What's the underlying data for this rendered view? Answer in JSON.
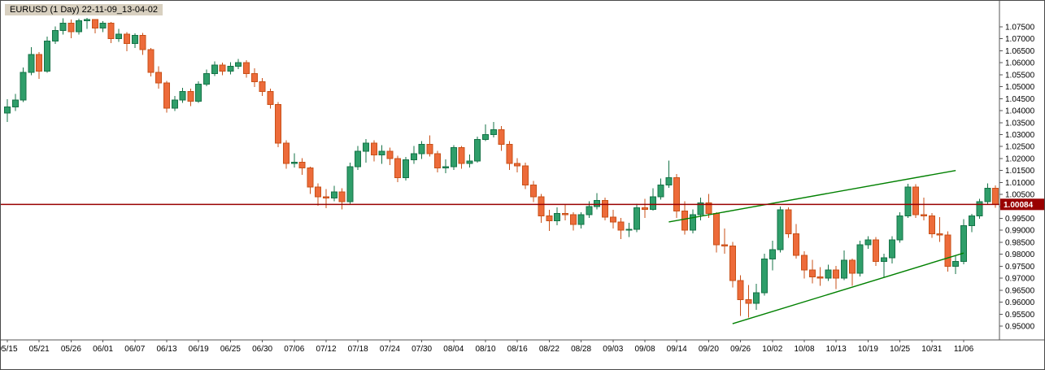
{
  "header": {
    "title": "EURUSD (1 Day) 22-11-09_13-04-02"
  },
  "chart_data": {
    "type": "candlestick",
    "symbol": "EURUSD",
    "timeframe": "1 Day",
    "title": "EURUSD (1 Day) 22-11-09_13-04-02",
    "grid": false,
    "legend_position": "none",
    "y_range": [
      0.946,
      1.0815
    ],
    "y_tick_labels": [
      "1.07500",
      "1.07000",
      "1.06500",
      "1.06000",
      "1.05500",
      "1.05000",
      "1.04500",
      "1.04000",
      "1.03500",
      "1.03000",
      "1.02500",
      "1.02000",
      "1.01500",
      "1.01000",
      "1.00500",
      "1.00000",
      "0.99500",
      "0.99000",
      "0.98500",
      "0.98000",
      "0.97500",
      "0.97000",
      "0.96500",
      "0.96000",
      "0.95500",
      "0.95000"
    ],
    "x_tick_labels": [
      "05/15",
      "05/21",
      "05/26",
      "06/01",
      "06/07",
      "06/13",
      "06/19",
      "06/25",
      "06/30",
      "07/06",
      "07/12",
      "07/18",
      "07/24",
      "07/30",
      "08/04",
      "08/10",
      "08/16",
      "08/22",
      "08/28",
      "09/03",
      "09/08",
      "09/14",
      "09/20",
      "09/26",
      "10/02",
      "10/08",
      "10/13",
      "10/19",
      "10/25",
      "10/31",
      "11/06"
    ],
    "x_tick_step": 4,
    "current_price": 1.00084,
    "current_price_label": "1.00084",
    "colors": {
      "up": "#2f9e6a",
      "up_border": "#157347",
      "down": "#ed6b3a",
      "down_border": "#c85018",
      "price_line": "#990000",
      "trend": "#008000",
      "axis": "#555555",
      "text": "#000000"
    },
    "trendlines": [
      {
        "name": "upper-channel-line",
        "from": {
          "index": 83,
          "price": 0.9935
        },
        "to": {
          "index": 119,
          "price": 1.015
        }
      },
      {
        "name": "lower-channel-line",
        "from": {
          "index": 91,
          "price": 0.951
        },
        "to": {
          "index": 120,
          "price": 0.9805
        }
      }
    ],
    "candles_ohlc": [
      [
        1.039,
        1.0448,
        1.0352,
        1.0415
      ],
      [
        1.0415,
        1.047,
        1.0398,
        1.0445
      ],
      [
        1.0445,
        1.058,
        1.0435,
        1.056
      ],
      [
        1.056,
        1.0665,
        1.0548,
        1.0635
      ],
      [
        1.0635,
        1.0645,
        1.0532,
        1.0565
      ],
      [
        1.0565,
        1.071,
        1.0558,
        1.069
      ],
      [
        1.069,
        1.0752,
        1.0678,
        1.0735
      ],
      [
        1.0735,
        1.0786,
        1.0718,
        1.0765
      ],
      [
        1.0765,
        1.078,
        1.0702,
        1.073
      ],
      [
        1.073,
        1.0784,
        1.0718,
        1.0775
      ],
      [
        1.0775,
        1.0787,
        1.0742,
        1.078
      ],
      [
        1.078,
        1.0783,
        1.0722,
        1.0745
      ],
      [
        1.0745,
        1.0774,
        1.0728,
        1.0765
      ],
      [
        1.0765,
        1.077,
        1.0682,
        1.07
      ],
      [
        1.07,
        1.0742,
        1.0688,
        1.072
      ],
      [
        1.072,
        1.0728,
        1.0648,
        1.068
      ],
      [
        1.068,
        1.0722,
        1.0662,
        1.0715
      ],
      [
        1.0715,
        1.0724,
        1.0632,
        1.0655
      ],
      [
        1.0655,
        1.0662,
        1.0542,
        1.056
      ],
      [
        1.056,
        1.0586,
        1.0492,
        1.0515
      ],
      [
        1.0515,
        1.0524,
        1.0392,
        1.041
      ],
      [
        1.041,
        1.0462,
        1.0398,
        1.0445
      ],
      [
        1.0445,
        1.0496,
        1.0432,
        1.048
      ],
      [
        1.048,
        1.0492,
        1.0418,
        1.044
      ],
      [
        1.044,
        1.0522,
        1.0432,
        1.051
      ],
      [
        1.051,
        1.0572,
        1.0502,
        1.0555
      ],
      [
        1.0555,
        1.0606,
        1.0544,
        1.059
      ],
      [
        1.059,
        1.0601,
        1.0548,
        1.0565
      ],
      [
        1.0565,
        1.0602,
        1.0552,
        1.0585
      ],
      [
        1.0585,
        1.0616,
        1.0574,
        1.06
      ],
      [
        1.06,
        1.0611,
        1.0538,
        1.0555
      ],
      [
        1.0555,
        1.0576,
        1.0498,
        1.052
      ],
      [
        1.052,
        1.0536,
        1.0462,
        1.048
      ],
      [
        1.048,
        1.0491,
        1.0408,
        1.0425
      ],
      [
        1.0425,
        1.0436,
        1.0248,
        1.0265
      ],
      [
        1.0265,
        1.0276,
        1.0158,
        1.018
      ],
      [
        1.018,
        1.0222,
        1.0162,
        1.0185
      ],
      [
        1.0185,
        1.0202,
        1.0132,
        1.016
      ],
      [
        1.016,
        1.0166,
        1.0052,
        1.008
      ],
      [
        1.008,
        1.0096,
        1.0002,
        1.004
      ],
      [
        1.004,
        1.0072,
        0.9992,
        1.0035
      ],
      [
        1.0035,
        1.0086,
        1.0022,
        1.006
      ],
      [
        1.006,
        1.0076,
        0.9988,
        1.002
      ],
      [
        1.002,
        1.0182,
        1.0012,
        1.0165
      ],
      [
        1.0165,
        1.0252,
        1.0152,
        1.023
      ],
      [
        1.023,
        1.0282,
        1.0182,
        1.0265
      ],
      [
        1.0265,
        1.0276,
        1.0188,
        1.0215
      ],
      [
        1.0215,
        1.0256,
        1.0178,
        1.023
      ],
      [
        1.023,
        1.0246,
        1.0172,
        1.02
      ],
      [
        1.02,
        1.0212,
        1.0102,
        1.012
      ],
      [
        1.012,
        1.0206,
        1.0108,
        1.0195
      ],
      [
        1.0195,
        1.0252,
        1.0178,
        1.022
      ],
      [
        1.022,
        1.0272,
        1.0198,
        1.026
      ],
      [
        1.026,
        1.0296,
        1.0208,
        1.022
      ],
      [
        1.022,
        1.0232,
        1.0142,
        1.016
      ],
      [
        1.016,
        1.0196,
        1.0138,
        1.0165
      ],
      [
        1.0165,
        1.0256,
        1.0152,
        1.0245
      ],
      [
        1.0245,
        1.0252,
        1.0158,
        1.018
      ],
      [
        1.018,
        1.0216,
        1.0162,
        1.019
      ],
      [
        1.019,
        1.0292,
        1.0182,
        1.028
      ],
      [
        1.028,
        1.0342,
        1.0272,
        1.03
      ],
      [
        1.03,
        1.0352,
        1.0288,
        1.032
      ],
      [
        1.032,
        1.0336,
        1.0232,
        1.026
      ],
      [
        1.026,
        1.0272,
        1.0152,
        1.018
      ],
      [
        1.018,
        1.0202,
        1.0142,
        1.017
      ],
      [
        1.017,
        1.0182,
        1.0072,
        1.009
      ],
      [
        1.009,
        1.0106,
        1.0018,
        1.004
      ],
      [
        1.004,
        1.0052,
        0.9932,
        0.996
      ],
      [
        0.996,
        0.9986,
        0.9898,
        0.994
      ],
      [
        0.994,
        0.9996,
        0.9922,
        0.997
      ],
      [
        0.997,
        1.0006,
        0.9942,
        0.9965
      ],
      [
        0.9965,
        0.9976,
        0.9899,
        0.9925
      ],
      [
        0.9925,
        0.9976,
        0.9908,
        0.9965
      ],
      [
        0.9965,
        1.0022,
        0.9952,
        1.0
      ],
      [
        1.0,
        1.0056,
        0.9988,
        1.0025
      ],
      [
        1.0025,
        1.0036,
        0.9942,
        0.9955
      ],
      [
        0.9955,
        0.9986,
        0.9908,
        0.9935
      ],
      [
        0.9935,
        0.9952,
        0.9864,
        0.99
      ],
      [
        0.99,
        0.9932,
        0.9872,
        0.9905
      ],
      [
        0.9905,
        1.0012,
        0.9892,
        0.9995
      ],
      [
        0.9995,
        1.0032,
        0.9952,
        0.9988
      ],
      [
        0.9988,
        1.0076,
        0.9982,
        1.004
      ],
      [
        1.004,
        1.0116,
        1.0028,
        1.009
      ],
      [
        1.009,
        1.0192,
        1.0078,
        1.012
      ],
      [
        1.012,
        1.0136,
        0.9952,
        0.998
      ],
      [
        0.998,
        1.0022,
        0.9882,
        0.99
      ],
      [
        0.99,
        0.9988,
        0.9888,
        0.9965
      ],
      [
        0.9965,
        1.0036,
        0.9942,
        1.0015
      ],
      [
        1.0015,
        1.0052,
        0.9952,
        0.997
      ],
      [
        0.997,
        0.9976,
        0.9808,
        0.984
      ],
      [
        0.984,
        0.9908,
        0.9802,
        0.9835
      ],
      [
        0.9835,
        0.9852,
        0.9662,
        0.969
      ],
      [
        0.969,
        0.9712,
        0.9542,
        0.961
      ],
      [
        0.961,
        0.9672,
        0.9535,
        0.9595
      ],
      [
        0.9595,
        0.9676,
        0.9568,
        0.964
      ],
      [
        0.964,
        0.9802,
        0.9628,
        0.978
      ],
      [
        0.978,
        0.9856,
        0.9732,
        0.982
      ],
      [
        0.982,
        0.9999,
        0.9808,
        0.9985
      ],
      [
        0.9985,
        0.9996,
        0.9868,
        0.9885
      ],
      [
        0.9885,
        0.9926,
        0.9782,
        0.9795
      ],
      [
        0.9795,
        0.9812,
        0.9698,
        0.9735
      ],
      [
        0.9735,
        0.9776,
        0.9678,
        0.9705
      ],
      [
        0.9705,
        0.9746,
        0.9668,
        0.97
      ],
      [
        0.97,
        0.9756,
        0.9688,
        0.9735
      ],
      [
        0.9735,
        0.9752,
        0.9655,
        0.97
      ],
      [
        0.97,
        0.9816,
        0.9692,
        0.9775
      ],
      [
        0.9775,
        0.9782,
        0.9668,
        0.972
      ],
      [
        0.972,
        0.9856,
        0.9708,
        0.984
      ],
      [
        0.984,
        0.9876,
        0.9822,
        0.986
      ],
      [
        0.986,
        0.9872,
        0.9752,
        0.977
      ],
      [
        0.977,
        0.9802,
        0.9702,
        0.9785
      ],
      [
        0.9785,
        0.9876,
        0.9762,
        0.986
      ],
      [
        0.986,
        0.9976,
        0.9848,
        0.996
      ],
      [
        0.996,
        1.0094,
        0.9952,
        1.008
      ],
      [
        1.008,
        1.0092,
        0.9952,
        0.9965
      ],
      [
        0.9965,
        1.0036,
        0.9942,
        0.996
      ],
      [
        0.996,
        0.9972,
        0.9868,
        0.9885
      ],
      [
        0.9885,
        0.9956,
        0.9852,
        0.988
      ],
      [
        0.988,
        0.9896,
        0.9728,
        0.975
      ],
      [
        0.975,
        0.9792,
        0.9718,
        0.977
      ],
      [
        0.977,
        0.9946,
        0.9758,
        0.992
      ],
      [
        0.992,
        0.9968,
        0.9892,
        0.996
      ],
      [
        0.996,
        1.0032,
        0.9948,
        1.002
      ],
      [
        1.002,
        1.0096,
        1.0008,
        1.0075
      ],
      [
        1.0075,
        1.0088,
        0.9994,
        1.00084
      ]
    ]
  }
}
